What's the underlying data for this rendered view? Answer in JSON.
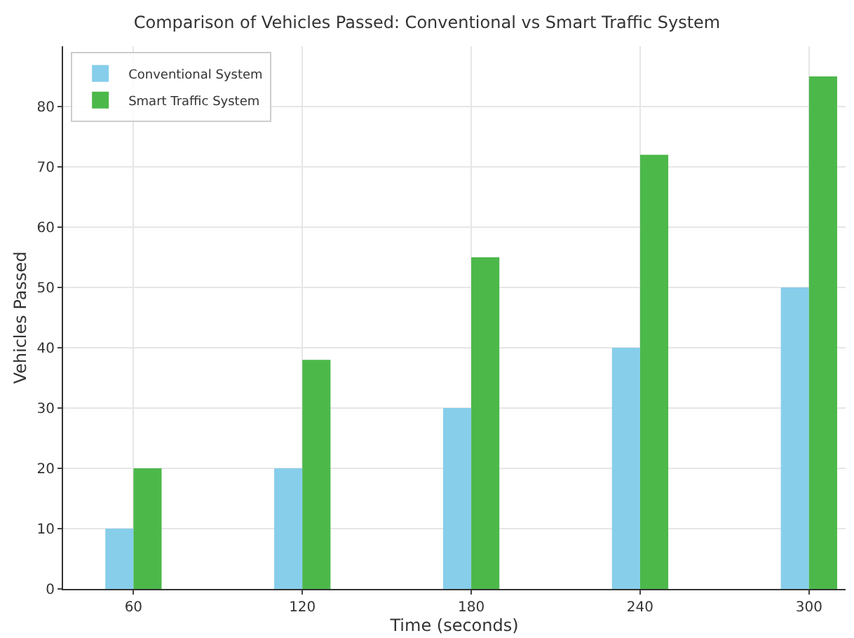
{
  "chart_data": {
    "type": "bar",
    "title": "Comparison of Vehicles Passed: Conventional vs Smart Traffic System",
    "xlabel": "Time (seconds)",
    "ylabel": "Vehicles Passed",
    "x": [
      60,
      120,
      180,
      240,
      300
    ],
    "series": [
      {
        "name": "Conventional System",
        "color": "#87ceeb",
        "values": [
          10,
          20,
          30,
          40,
          50
        ]
      },
      {
        "name": "Smart Traffic System",
        "color": "#4cb84a",
        "values": [
          20,
          38,
          55,
          72,
          85
        ]
      }
    ],
    "xlim": [
      35,
      313
    ],
    "xticks": [
      60,
      120,
      180,
      240,
      300
    ],
    "ylim": [
      0,
      90
    ],
    "yticks": [
      0,
      10,
      20,
      30,
      40,
      50,
      60,
      70,
      80
    ],
    "grid": true,
    "legend": "top left"
  }
}
